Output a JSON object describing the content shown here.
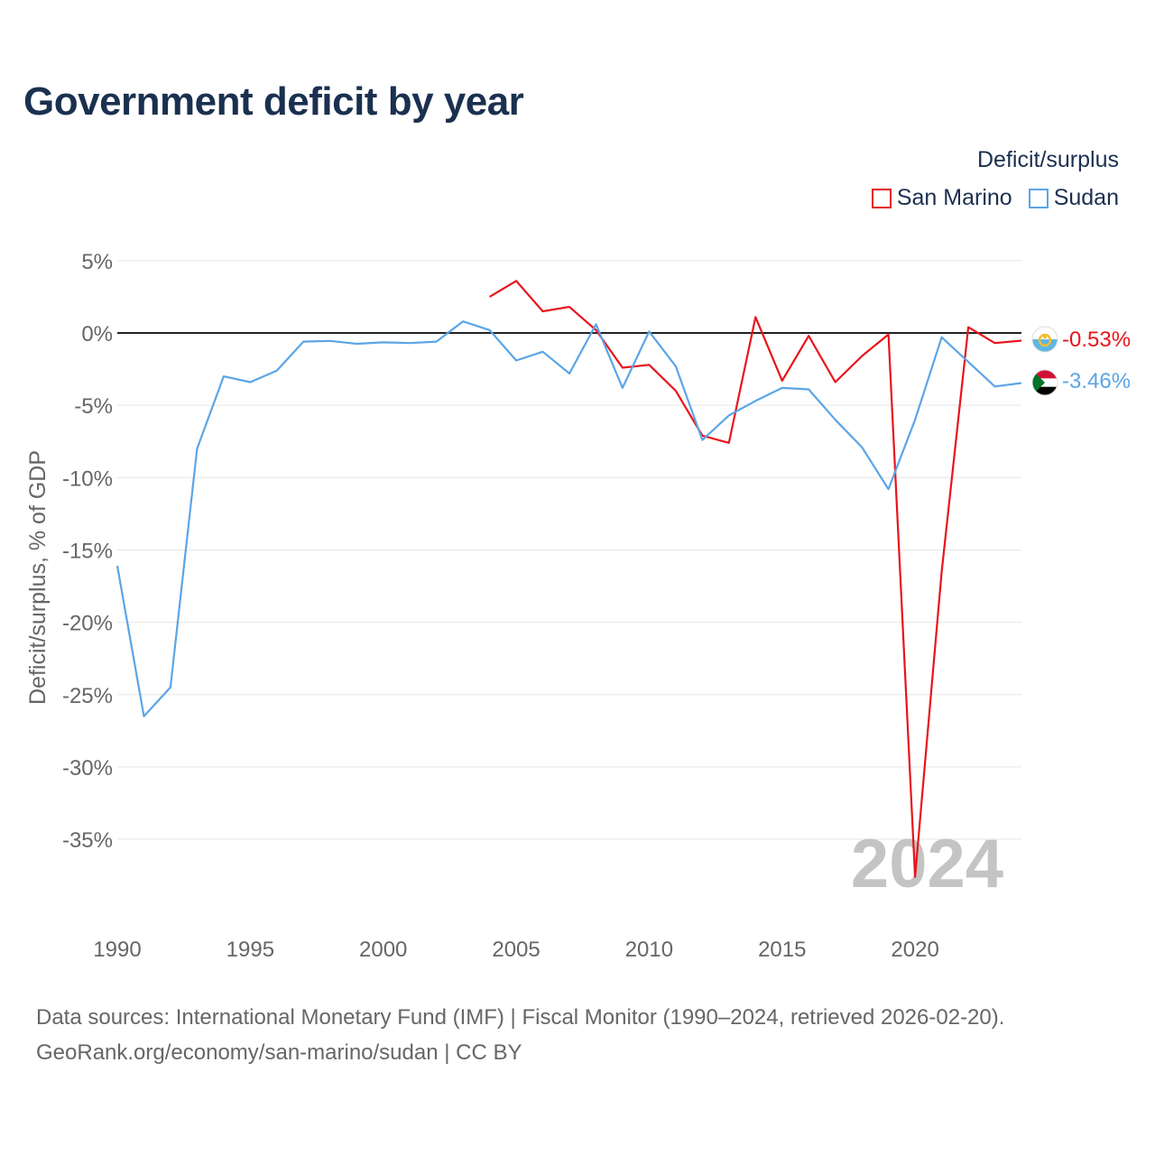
{
  "title": "Government deficit by year",
  "legend": {
    "title": "Deficit/surplus",
    "entries": [
      {
        "label": "San Marino",
        "color": "#e8141b"
      },
      {
        "label": "Sudan",
        "color": "#5ba5e6"
      }
    ]
  },
  "chart_data": {
    "type": "line",
    "title": "Government deficit by year",
    "xlabel": "",
    "ylabel": "Deficit/surplus, % of GDP",
    "xlim": [
      1990,
      2024
    ],
    "ylim": [
      -40,
      5
    ],
    "x_ticks": [
      1990,
      1995,
      2000,
      2005,
      2010,
      2015,
      2020
    ],
    "y_ticks": [
      5,
      0,
      -5,
      -10,
      -15,
      -20,
      -25,
      -30,
      -35
    ],
    "y_tick_labels": [
      "5%",
      "0%",
      "-5%",
      "-10%",
      "-15%",
      "-20%",
      "-25%",
      "-30%",
      "-35%"
    ],
    "zero_line": true,
    "grid": true,
    "watermark_year": "2024",
    "series": [
      {
        "name": "San Marino",
        "color": "#e8141b",
        "x": [
          2004,
          2005,
          2006,
          2007,
          2008,
          2009,
          2010,
          2011,
          2012,
          2013,
          2014,
          2015,
          2016,
          2017,
          2018,
          2019,
          2020,
          2021,
          2022,
          2023,
          2024
        ],
        "values": [
          2.5,
          3.6,
          1.5,
          1.8,
          0.2,
          -2.4,
          -2.2,
          -4.0,
          -7.1,
          -7.6,
          1.1,
          -3.3,
          -0.2,
          -3.4,
          -1.6,
          -0.1,
          -37.6,
          -16.5,
          0.4,
          -0.7,
          -0.53
        ],
        "end_label": "-0.53%"
      },
      {
        "name": "Sudan",
        "color": "#5ba5e6",
        "x": [
          1990,
          1991,
          1992,
          1993,
          1994,
          1995,
          1996,
          1997,
          1998,
          1999,
          2000,
          2001,
          2002,
          2003,
          2004,
          2005,
          2006,
          2007,
          2008,
          2009,
          2010,
          2011,
          2012,
          2013,
          2014,
          2015,
          2016,
          2017,
          2018,
          2019,
          2020,
          2021,
          2022,
          2023,
          2024
        ],
        "values": [
          -16.1,
          -26.5,
          -24.5,
          -8.0,
          -3.0,
          -3.4,
          -2.6,
          -0.6,
          -0.55,
          -0.75,
          -0.65,
          -0.7,
          -0.6,
          0.8,
          0.2,
          -1.9,
          -1.3,
          -2.8,
          0.6,
          -3.8,
          0.1,
          -2.3,
          -7.4,
          -5.7,
          -4.7,
          -3.8,
          -3.9,
          -6.0,
          -7.9,
          -10.8,
          -6.0,
          -0.3,
          -2.0,
          -3.7,
          -3.46
        ],
        "end_label": "-3.46%"
      }
    ]
  },
  "sources": {
    "line1": "Data sources: International Monetary Fund (IMF) | Fiscal Monitor (1990–2024, retrieved 2026-02-20).",
    "line2": "GeoRank.org/economy/san-marino/sudan | CC BY"
  },
  "icons": {
    "san_marino": "san-marino-flag-icon",
    "sudan": "sudan-flag-icon"
  }
}
